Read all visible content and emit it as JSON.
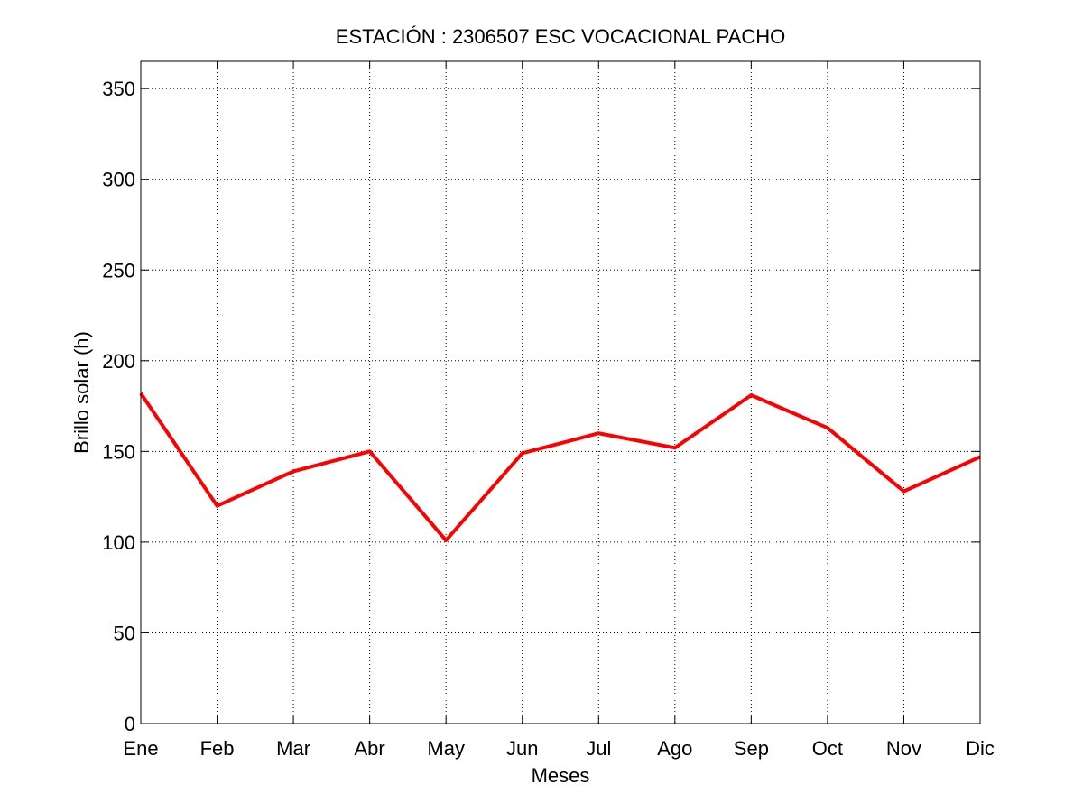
{
  "chart_data": {
    "type": "line",
    "title": "ESTACIÓN :  2306507  ESC VOCACIONAL PACHO",
    "xlabel": "Meses",
    "ylabel": "Brillo solar (h)",
    "categories": [
      "Ene",
      "Feb",
      "Mar",
      "Abr",
      "May",
      "Jun",
      "Jul",
      "Ago",
      "Sep",
      "Oct",
      "Nov",
      "Dic"
    ],
    "series": [
      {
        "values": [
          182,
          120,
          139,
          150,
          101,
          149,
          160,
          152,
          181,
          163,
          128,
          147
        ],
        "color": "#ff0000"
      }
    ],
    "yticks": [
      0,
      50,
      100,
      150,
      200,
      250,
      300,
      350
    ],
    "ylim": [
      0,
      365
    ],
    "grid": true,
    "grid_style": "dotted"
  }
}
